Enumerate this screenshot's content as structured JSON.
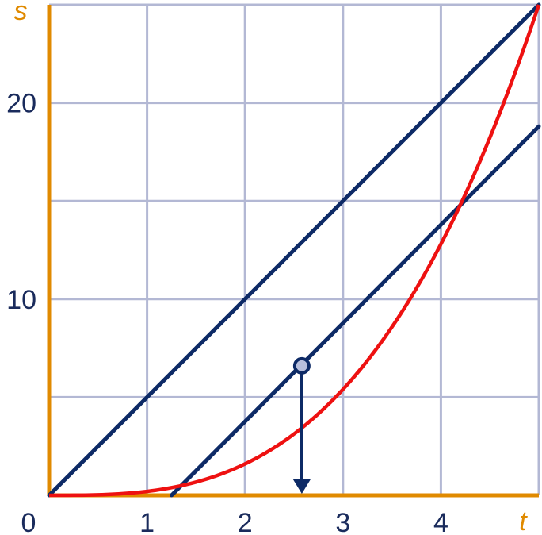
{
  "chart_data": {
    "type": "line",
    "xlabel": "t",
    "ylabel": "s",
    "xlim": [
      0,
      5
    ],
    "ylim": [
      0,
      25
    ],
    "x_minor_step": 1,
    "y_minor_step": 5,
    "x_ticks": [
      {
        "value": 0,
        "label": "0"
      },
      {
        "value": 1,
        "label": "1"
      },
      {
        "value": 2,
        "label": "2"
      },
      {
        "value": 3,
        "label": "3"
      },
      {
        "value": 4,
        "label": "4"
      }
    ],
    "y_ticks": [
      {
        "value": 10,
        "label": "10"
      },
      {
        "value": 20,
        "label": "20"
      }
    ],
    "grid": true,
    "series": [
      {
        "kind": "curve",
        "formula": "s = t^3 / 5",
        "color": "#ee1111",
        "x": [
          0,
          0.5,
          1,
          1.5,
          2,
          2.5,
          2.887,
          3,
          3.5,
          4,
          4.5,
          5
        ],
        "y": [
          0,
          0.025,
          0.2,
          0.675,
          1.6,
          3.125,
          4.81,
          5.4,
          8.575,
          12.8,
          18.225,
          25
        ]
      },
      {
        "kind": "secant",
        "color": "#0d2a66",
        "x": [
          0,
          5
        ],
        "y": [
          0,
          25
        ]
      },
      {
        "kind": "tangent",
        "color": "#0d2a66",
        "x": [
          1.25,
          5
        ],
        "y": [
          0,
          18.8
        ]
      }
    ],
    "marker_point": {
      "x": 2.58,
      "y": 6.6
    },
    "arrow": {
      "from": [
        2.58,
        6.6
      ],
      "to": [
        2.58,
        0
      ]
    },
    "colors": {
      "axis": "#e08a00",
      "grid": "#b3b8d4",
      "lines": "#0d2a66",
      "curve": "#ee1111",
      "marker_fill": "#b8bfdc"
    }
  }
}
